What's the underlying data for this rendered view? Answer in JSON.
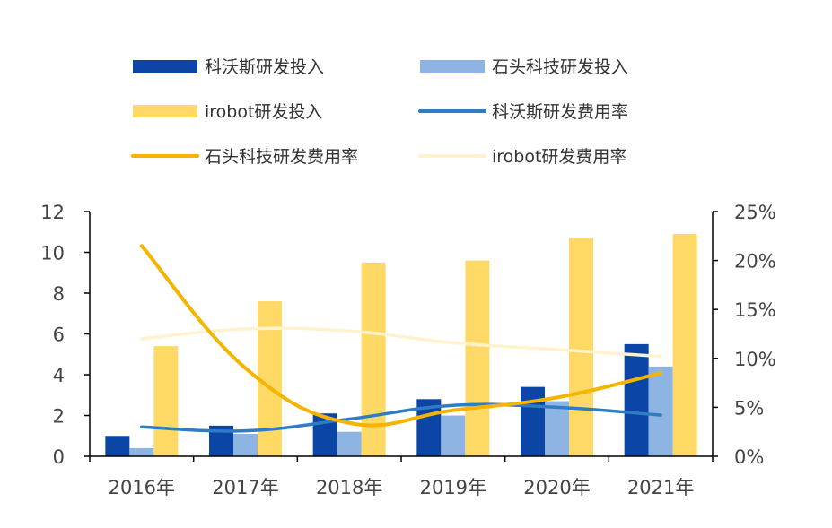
{
  "chart_data": {
    "type": "bar",
    "categories": [
      "2016年",
      "2017年",
      "2018年",
      "2019年",
      "2020年",
      "2021年"
    ],
    "series": [
      {
        "name": "科沃斯研发投入",
        "kind": "bar",
        "axis": "left",
        "color": "#0B45A5",
        "values": [
          1.0,
          1.5,
          2.1,
          2.8,
          3.4,
          5.5
        ]
      },
      {
        "name": "石头科技研发投入",
        "kind": "bar",
        "axis": "left",
        "color": "#8DB4E2",
        "values": [
          0.4,
          1.1,
          1.2,
          2.0,
          2.7,
          4.4
        ]
      },
      {
        "name": "irobot研发投入",
        "kind": "bar",
        "axis": "left",
        "color": "#FFD966",
        "values": [
          5.4,
          7.6,
          9.5,
          9.6,
          10.7,
          10.9
        ]
      },
      {
        "name": "科沃斯研发费用率",
        "kind": "line",
        "axis": "right",
        "color": "#2E7CC4",
        "values": [
          3.0,
          2.6,
          3.8,
          5.2,
          5.0,
          4.2
        ]
      },
      {
        "name": "石头科技研发费用率",
        "kind": "line",
        "axis": "right",
        "color": "#F5B400",
        "values": [
          21.5,
          9.0,
          3.4,
          4.7,
          6.0,
          8.5
        ]
      },
      {
        "name": "irobot研发费用率",
        "kind": "line",
        "axis": "right",
        "color": "#FFF2CC",
        "values": [
          12.0,
          13.0,
          12.8,
          11.6,
          10.9,
          10.2
        ]
      }
    ],
    "y_left": {
      "ylim": [
        0,
        12
      ],
      "ticks": [
        "0",
        "2",
        "4",
        "6",
        "8",
        "10",
        "12"
      ],
      "tick_values": [
        0,
        2,
        4,
        6,
        8,
        10,
        12
      ]
    },
    "y_right": {
      "ylim": [
        0,
        25
      ],
      "ticks": [
        "0%",
        "5%",
        "10%",
        "15%",
        "20%",
        "25%"
      ],
      "tick_values": [
        0,
        5,
        10,
        15,
        20,
        25
      ]
    },
    "legend_position": "top",
    "grid": false
  }
}
